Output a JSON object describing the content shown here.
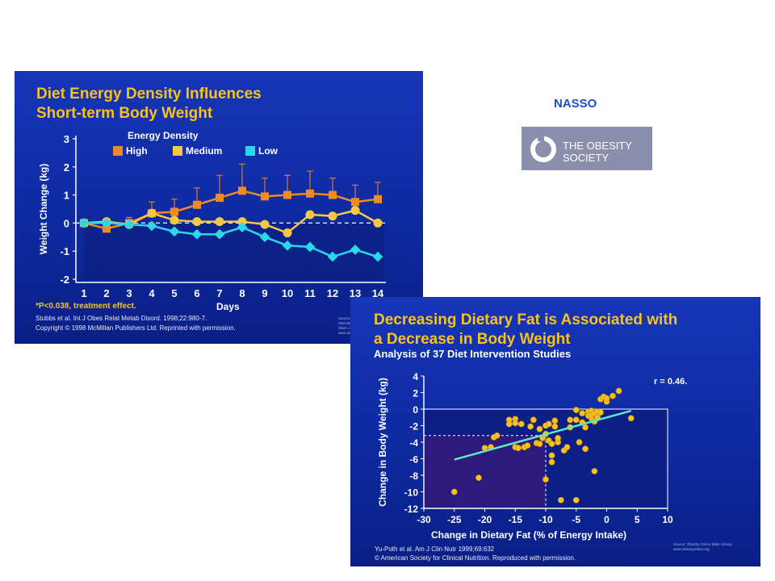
{
  "header": {
    "nasso": "NASSO"
  },
  "logo": {
    "line1": "THE OBESITY",
    "line2": "SOCIETY",
    "icon": "obesity-society-logo-mark"
  },
  "chart1": {
    "title_line1": "Diet Energy Density Influences",
    "title_line2": "Short-term Body Weight",
    "footnote_sig": "*P<0.038, treatment effect.",
    "citation": "Stubbs et al. Int J Obes Relat Metab Disord. 1998;22:980-7.",
    "copyright": "Copyright © 1998 McMillan Publishers Ltd. Reprinted with permission.",
    "source": "Source: Obesity Online Slide Library www.obesityonline.org"
  },
  "chart2": {
    "title_line1": "Decreasing Dietary Fat is Associated with",
    "title_line2": "a Decrease in Body Weight",
    "subtitle": "Analysis of 37 Diet Intervention Studies",
    "r_label": "r = 0.46.",
    "citation": "Yu-Poth et al. Am J Clin Nutr 1999;69:632",
    "copyright": "© American Society for Clinical Nutrition. Reproduced with permission.",
    "source": "Source: Obesity Online Slide Library www.obesityonline.org"
  },
  "chart_data": [
    {
      "type": "line",
      "xlabel": "Days",
      "ylabel": "Weight Change (kg)",
      "ylim": [
        -2,
        3
      ],
      "yticks": [
        -2,
        -1,
        0,
        1,
        2,
        3
      ],
      "x": [
        1,
        2,
        3,
        4,
        5,
        6,
        7,
        8,
        9,
        10,
        11,
        12,
        13,
        14
      ],
      "legend_title": "Energy Density",
      "legend_placement": "top",
      "series": [
        {
          "name": "High",
          "color": "#f08a24",
          "values": [
            0,
            -0.2,
            0,
            0.35,
            0.4,
            0.65,
            0.9,
            1.15,
            0.95,
            1.0,
            1.05,
            1.0,
            0.75,
            0.85
          ],
          "errors": [
            0.1,
            0.15,
            0.2,
            0.4,
            0.45,
            0.6,
            0.8,
            0.95,
            0.65,
            0.7,
            0.8,
            0.6,
            0.6,
            0.6
          ]
        },
        {
          "name": "Medium",
          "color": "#f5c842",
          "values": [
            0,
            0.05,
            -0.05,
            0.35,
            0.1,
            0.05,
            0.05,
            0.05,
            -0.05,
            -0.35,
            0.3,
            0.25,
            0.45,
            0.0
          ],
          "errors": []
        },
        {
          "name": "Low",
          "color": "#2ad8e8",
          "values": [
            0,
            0,
            -0.05,
            -0.1,
            -0.3,
            -0.4,
            -0.4,
            -0.15,
            -0.5,
            -0.8,
            -0.85,
            -1.2,
            -0.95,
            -1.2
          ],
          "errors": []
        }
      ]
    },
    {
      "type": "scatter",
      "xlabel": "Change in Dietary Fat (% of Energy Intake)",
      "ylabel": "Change in Body Weight (kg)",
      "xlim": [
        -30,
        10
      ],
      "ylim": [
        -12,
        4
      ],
      "xticks": [
        -30,
        -25,
        -20,
        -15,
        -10,
        -5,
        0,
        5,
        10
      ],
      "yticks": [
        -12,
        -10,
        -8,
        -6,
        -4,
        -2,
        0,
        2,
        4
      ],
      "trend_line": {
        "x": [
          -25,
          4
        ],
        "y": [
          -6.1,
          -0.2
        ]
      },
      "reference": {
        "x": -10,
        "y": -3.2
      },
      "points": [
        [
          -25,
          -10
        ],
        [
          -21,
          -8.3
        ],
        [
          -20,
          -4.7
        ],
        [
          -19,
          -4.6
        ],
        [
          -18.5,
          -3.4
        ],
        [
          -18,
          -3.2
        ],
        [
          -16,
          -1.3
        ],
        [
          -16,
          -1.8
        ],
        [
          -15,
          -1.2
        ],
        [
          -15,
          -1.7
        ],
        [
          -15,
          -4.6
        ],
        [
          -14.5,
          -4.7
        ],
        [
          -14,
          -1.8
        ],
        [
          -13.5,
          -4.6
        ],
        [
          -13,
          -4.4
        ],
        [
          -12.5,
          -2.1
        ],
        [
          -12,
          -1.3
        ],
        [
          -11.5,
          -4.1
        ],
        [
          -11,
          -2.4
        ],
        [
          -11,
          -4.2
        ],
        [
          -10.5,
          -3.5
        ],
        [
          -10,
          -3
        ],
        [
          -10,
          -2
        ],
        [
          -10,
          -8.5
        ],
        [
          -9.5,
          -1.8
        ],
        [
          -9.5,
          -3.8
        ],
        [
          -9,
          -4.2
        ],
        [
          -9,
          -5.6
        ],
        [
          -9,
          -6.4
        ],
        [
          -8.5,
          -1.4
        ],
        [
          -8.5,
          -2.1
        ],
        [
          -8,
          -4
        ],
        [
          -8,
          -3.5
        ],
        [
          -7.5,
          -11
        ],
        [
          -7,
          -5
        ],
        [
          -6.5,
          -4.6
        ],
        [
          -6,
          -2.2
        ],
        [
          -6,
          -1.3
        ],
        [
          -5,
          -0.1
        ],
        [
          -5,
          -1.3
        ],
        [
          -5,
          -11
        ],
        [
          -4.5,
          -4
        ],
        [
          -4,
          -0.5
        ],
        [
          -4,
          -1.6
        ],
        [
          -3.5,
          -2.2
        ],
        [
          -3.5,
          -4.8
        ],
        [
          -3,
          -0.3
        ],
        [
          -3,
          -0.8
        ],
        [
          -2.5,
          -0.2
        ],
        [
          -2.5,
          -1.1
        ],
        [
          -2.5,
          -0.7
        ],
        [
          -2,
          -0.5
        ],
        [
          -2,
          -1.5
        ],
        [
          -2,
          -7.5
        ],
        [
          -1.5,
          -0.3
        ],
        [
          -1.5,
          -1
        ],
        [
          -1,
          -0.4
        ],
        [
          -1,
          1.2
        ],
        [
          -0.5,
          1.5
        ],
        [
          0,
          0.9
        ],
        [
          0,
          1.3
        ],
        [
          1,
          1.6
        ],
        [
          2,
          2.2
        ],
        [
          4,
          -1.1
        ]
      ]
    }
  ]
}
